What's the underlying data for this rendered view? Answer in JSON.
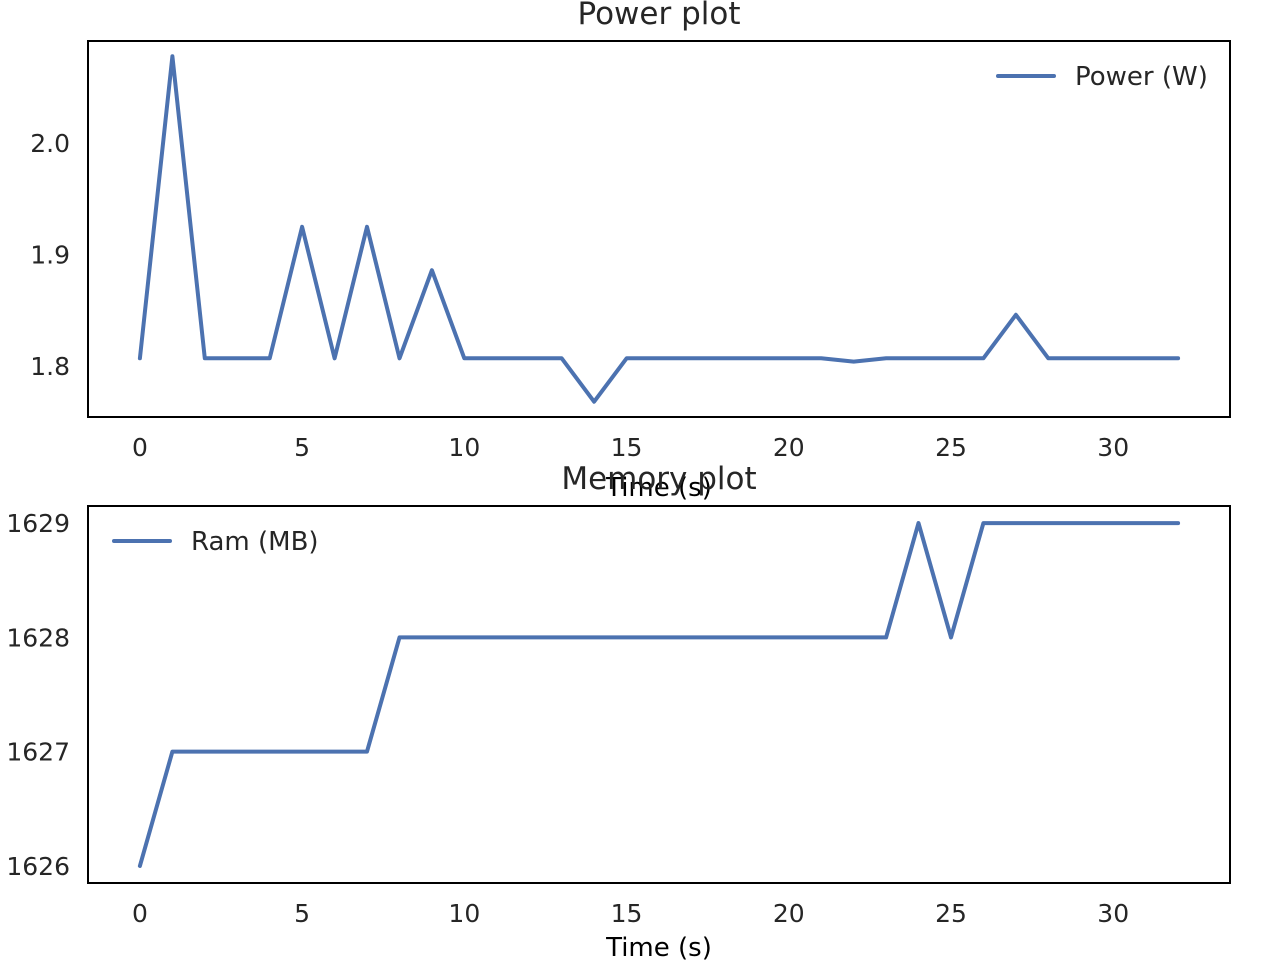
{
  "chart_data": [
    {
      "type": "line",
      "title": "Power plot",
      "xlabel": "Time (s)",
      "ylabel": "",
      "x": [
        0,
        1,
        2,
        3,
        4,
        5,
        6,
        7,
        8,
        9,
        10,
        11,
        12,
        13,
        14,
        15,
        16,
        17,
        18,
        19,
        20,
        21,
        22,
        23,
        24,
        25,
        26,
        27,
        28,
        29,
        30,
        31,
        32
      ],
      "series": [
        {
          "name": "Power (W)",
          "color": "#4c72b0",
          "values": [
            1.807,
            2.078,
            1.807,
            1.807,
            1.807,
            1.925,
            1.807,
            1.925,
            1.807,
            1.886,
            1.807,
            1.807,
            1.807,
            1.807,
            1.768,
            1.807,
            1.807,
            1.807,
            1.807,
            1.807,
            1.807,
            1.807,
            1.804,
            1.807,
            1.807,
            1.807,
            1.807,
            1.846,
            1.807,
            1.807,
            1.807,
            1.807,
            1.807
          ]
        }
      ],
      "xlim": [
        -1.6,
        33.6
      ],
      "ylim": [
        1.7543,
        2.0917
      ],
      "xticks": [
        "0",
        "5",
        "10",
        "15",
        "20",
        "25",
        "30"
      ],
      "yticks": [
        "1.8",
        "1.9",
        "2.0"
      ],
      "grid": false,
      "legend": "upper right"
    },
    {
      "type": "line",
      "title": "Memory plot",
      "xlabel": "Time (s)",
      "ylabel": "",
      "x": [
        0,
        1,
        2,
        3,
        4,
        5,
        6,
        7,
        8,
        9,
        10,
        11,
        12,
        13,
        14,
        15,
        16,
        17,
        18,
        19,
        20,
        21,
        22,
        23,
        24,
        25,
        26,
        27,
        28,
        29,
        30,
        31,
        32
      ],
      "series": [
        {
          "name": "Ram (MB)",
          "color": "#4c72b0",
          "values": [
            1626,
            1627,
            1627,
            1627,
            1627,
            1627,
            1627,
            1627,
            1628,
            1628,
            1628,
            1628,
            1628,
            1628,
            1628,
            1628,
            1628,
            1628,
            1628,
            1628,
            1628,
            1628,
            1628,
            1628,
            1629,
            1628,
            1629,
            1629,
            1629,
            1629,
            1629,
            1629,
            1629
          ]
        }
      ],
      "xlim": [
        -1.6,
        33.6
      ],
      "ylim": [
        1625.85,
        1629.15
      ],
      "xticks": [
        "0",
        "5",
        "10",
        "15",
        "20",
        "25",
        "30"
      ],
      "yticks": [
        "1626",
        "1627",
        "1628",
        "1629"
      ],
      "grid": false,
      "legend": "upper left"
    }
  ]
}
